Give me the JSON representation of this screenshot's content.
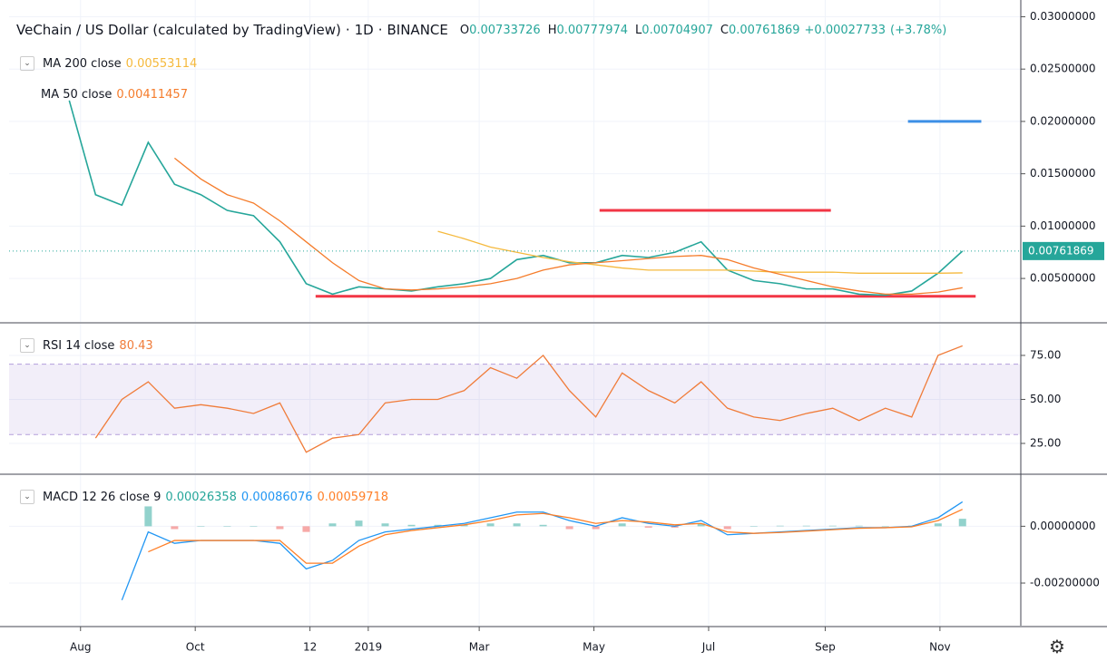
{
  "chart_data": [
    {
      "type": "line",
      "title": "VeChain / US Dollar (calculated by TradingView)",
      "interval": "1D",
      "exchange": "BINANCE",
      "ohlc": [
        {
          "label": "O",
          "value": 0.00733726
        },
        {
          "label": "H",
          "value": 0.00777974
        },
        {
          "label": "L",
          "value": 0.00704907
        },
        {
          "label": "C",
          "value": 0.00761869
        }
      ],
      "change": "+0.00027733",
      "change_percent": "(+3.78%)",
      "x": [
        -6,
        8,
        22,
        36,
        50,
        64,
        78,
        92,
        106,
        120,
        134,
        148,
        162,
        176,
        190,
        204,
        218,
        232,
        246,
        260,
        274,
        288,
        302,
        316,
        330,
        344,
        358,
        372,
        386,
        400,
        414,
        428,
        442,
        456,
        469
      ],
      "xlim": [
        -38,
        500
      ],
      "xticks": [
        {
          "value": 0,
          "label": "Aug"
        },
        {
          "value": 61,
          "label": "Oct"
        },
        {
          "value": 122,
          "label": "12"
        },
        {
          "value": 153,
          "label": "2019"
        },
        {
          "value": 212,
          "label": "Mar"
        },
        {
          "value": 273,
          "label": "May"
        },
        {
          "value": 334,
          "label": "Jul"
        },
        {
          "value": 396,
          "label": "Sep"
        },
        {
          "value": 457,
          "label": "Nov"
        }
      ],
      "ylim": [
        0.00085,
        0.0316
      ],
      "yticks": [
        {
          "value": 0.03,
          "label": "0.03000000"
        },
        {
          "value": 0.025,
          "label": "0.02500000"
        },
        {
          "value": 0.02,
          "label": "0.02000000"
        },
        {
          "value": 0.015,
          "label": "0.01500000"
        },
        {
          "value": 0.01,
          "label": "0.01000000"
        },
        {
          "value": 0.005,
          "label": "0.00500000"
        }
      ],
      "grid": true,
      "series": [
        {
          "color": "#26a69a",
          "values": [
            0.022,
            0.013,
            0.012,
            0.018,
            0.014,
            0.013,
            0.0115,
            0.011,
            0.0085,
            0.0045,
            0.0035,
            0.0042,
            0.004,
            0.0038,
            0.0042,
            0.0045,
            0.005,
            0.0068,
            0.0072,
            0.0065,
            0.0065,
            0.0072,
            0.007,
            0.0075,
            0.0085,
            0.0058,
            0.0048,
            0.0045,
            0.004,
            0.004,
            0.0035,
            0.0034,
            0.0038,
            0.0055,
            0.00761869
          ]
        },
        {
          "name": "MA 200 close",
          "color": "#f5b93d",
          "values": [
            null,
            null,
            null,
            null,
            null,
            null,
            null,
            null,
            null,
            null,
            null,
            null,
            null,
            null,
            0.0095,
            0.0088,
            0.008,
            0.0075,
            0.007,
            0.0066,
            0.0063,
            0.006,
            0.0058,
            0.0058,
            0.0058,
            0.0058,
            0.0057,
            0.0056,
            0.0056,
            0.0056,
            0.0055,
            0.0055,
            0.0055,
            0.0055,
            0.00553114
          ]
        },
        {
          "name": "MA 50 close",
          "color": "#f57c2b",
          "values": [
            null,
            null,
            null,
            null,
            0.0165,
            0.0145,
            0.013,
            0.0122,
            0.0105,
            0.0085,
            0.0065,
            0.0048,
            0.004,
            0.0039,
            0.004,
            0.0042,
            0.0045,
            0.005,
            0.0058,
            0.0063,
            0.0065,
            0.0067,
            0.0069,
            0.0071,
            0.0072,
            0.0068,
            0.006,
            0.0054,
            0.0048,
            0.0042,
            0.0038,
            0.0035,
            0.0035,
            0.0037,
            0.00411457
          ]
        }
      ],
      "lines": [
        {
          "x": [
            276,
            399
          ],
          "y": 0.0115,
          "color": "#f23645"
        },
        {
          "x": [
            125,
            476
          ],
          "y": 0.0033,
          "color": "#f23645"
        },
        {
          "x": [
            440,
            479
          ],
          "y": 0.02,
          "color": "#3d8fe6"
        }
      ]
    },
    {
      "type": "line",
      "ylim": [
        8,
        93
      ],
      "yticks": [
        {
          "value": 75,
          "label": "75.00"
        },
        {
          "value": 50,
          "label": "50.00"
        },
        {
          "value": 25,
          "label": "25.00"
        }
      ],
      "band": [
        30,
        70
      ],
      "series": [
        {
          "name": "RSI 14 close",
          "color": "#f07c3a",
          "values": [
            null,
            28,
            50,
            60,
            45,
            47,
            45,
            42,
            48,
            20,
            28,
            30,
            48,
            50,
            50,
            55,
            68,
            62,
            75,
            55,
            40,
            65,
            55,
            48,
            60,
            45,
            40,
            38,
            42,
            45,
            38,
            45,
            40,
            75,
            80.43
          ]
        }
      ]
    },
    {
      "type": "line",
      "title": "MACD 12 26 close 9",
      "ylim": [
        -0.0035,
        0.0018
      ],
      "yticks": [
        {
          "value": 0,
          "label": "0.00000000"
        },
        {
          "value": -0.002,
          "label": "-0.00200000"
        }
      ],
      "series": [
        {
          "type": "bar",
          "color": "#26a69a",
          "negative_color": "#ef5350",
          "values": [
            null,
            null,
            null,
            0.0007,
            -0.0001,
            0,
            0,
            0,
            -0.0001,
            -0.0002,
            0.0001,
            0.0002,
            0.0001,
            5e-05,
            5e-05,
            5e-05,
            0.0001,
            0.0001,
            5e-05,
            -0.0001,
            -0.0001,
            0.0001,
            -5e-05,
            -5e-05,
            0.0001,
            -0.0001,
            0,
            2e-05,
            2e-05,
            2e-05,
            2e-05,
            0,
            2e-05,
            0.0001,
            0.00026358
          ]
        },
        {
          "color": "#2196f3",
          "values": [
            null,
            null,
            -0.0026,
            -0.0002,
            -0.0006,
            -0.0005,
            -0.0005,
            -0.0005,
            -0.0006,
            -0.0015,
            -0.0012,
            -0.0005,
            -0.0002,
            -0.0001,
            0,
            0.0001,
            0.0003,
            0.0005,
            0.0005,
            0.0002,
            0,
            0.0003,
            0.0001,
            0,
            0.0002,
            -0.0003,
            -0.00025,
            -0.0002,
            -0.00015,
            -0.0001,
            -5e-05,
            -5e-05,
            0,
            0.0003,
            0.00086076
          ]
        },
        {
          "color": "#ff7f27",
          "values": [
            null,
            null,
            null,
            -0.0009,
            -0.0005,
            -0.0005,
            -0.0005,
            -0.0005,
            -0.0005,
            -0.0013,
            -0.0013,
            -0.0007,
            -0.0003,
            -0.00015,
            -5e-05,
            5e-05,
            0.0002,
            0.0004,
            0.00045,
            0.0003,
            0.0001,
            0.0002,
            0.00015,
            5e-05,
            0.0001,
            -0.0002,
            -0.00025,
            -0.00022,
            -0.00017,
            -0.00012,
            -7e-05,
            -5e-05,
            -2e-05,
            0.0002,
            0.00059718
          ]
        }
      ]
    }
  ]
}
